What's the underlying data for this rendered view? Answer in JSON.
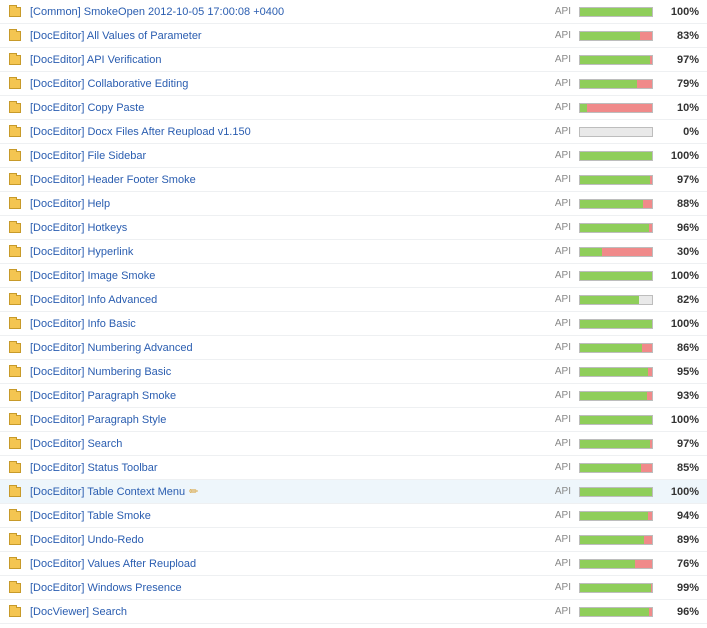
{
  "api_label": "API",
  "colors": {
    "link": "#2a5db0",
    "bar_green": "#8fce5a",
    "bar_red": "#f08a8a",
    "bar_empty": "#e9e9e9",
    "bar_border": "#bdbdbd",
    "highlight_bg": "#eef6fb",
    "folder_fill": "#f4c551",
    "folder_border": "#c79a2a"
  },
  "rows": [
    {
      "name": "[Common] SmokeOpen 2012-10-05 17:00:08 +0400",
      "pct": 100,
      "green": 100,
      "edit": false,
      "highlight": false
    },
    {
      "name": "[DocEditor] All Values of Parameter",
      "pct": 83,
      "green": 83,
      "edit": false,
      "highlight": false
    },
    {
      "name": "[DocEditor] API Verification",
      "pct": 97,
      "green": 97,
      "edit": false,
      "highlight": false
    },
    {
      "name": "[DocEditor] Collaborative Editing",
      "pct": 79,
      "green": 79,
      "edit": false,
      "highlight": false
    },
    {
      "name": "[DocEditor] Copy Paste",
      "pct": 10,
      "green": 10,
      "edit": false,
      "highlight": false
    },
    {
      "name": "[DocEditor] Docx Files After Reupload v1.150",
      "pct": 0,
      "green": 0,
      "edit": false,
      "highlight": false
    },
    {
      "name": "[DocEditor] File Sidebar",
      "pct": 100,
      "green": 100,
      "edit": false,
      "highlight": false
    },
    {
      "name": "[DocEditor] Header Footer Smoke",
      "pct": 97,
      "green": 97,
      "edit": false,
      "highlight": false
    },
    {
      "name": "[DocEditor] Help",
      "pct": 88,
      "green": 88,
      "edit": false,
      "highlight": false
    },
    {
      "name": "[DocEditor] Hotkeys",
      "pct": 96,
      "green": 96,
      "edit": false,
      "highlight": false
    },
    {
      "name": "[DocEditor] Hyperlink",
      "pct": 30,
      "green": 30,
      "edit": false,
      "highlight": false
    },
    {
      "name": "[DocEditor] Image Smoke",
      "pct": 100,
      "green": 100,
      "edit": false,
      "highlight": false
    },
    {
      "name": "[DocEditor] Info Advanced",
      "pct": 82,
      "green": 82,
      "red": 0,
      "edit": false,
      "highlight": false
    },
    {
      "name": "[DocEditor] Info Basic",
      "pct": 100,
      "green": 100,
      "edit": false,
      "highlight": false
    },
    {
      "name": "[DocEditor] Numbering Advanced",
      "pct": 86,
      "green": 86,
      "edit": false,
      "highlight": false
    },
    {
      "name": "[DocEditor] Numbering Basic",
      "pct": 95,
      "green": 95,
      "edit": false,
      "highlight": false
    },
    {
      "name": "[DocEditor] Paragraph Smoke",
      "pct": 93,
      "green": 93,
      "edit": false,
      "highlight": false
    },
    {
      "name": "[DocEditor] Paragraph Style",
      "pct": 100,
      "green": 100,
      "edit": false,
      "highlight": false
    },
    {
      "name": "[DocEditor] Search",
      "pct": 97,
      "green": 97,
      "edit": false,
      "highlight": false
    },
    {
      "name": "[DocEditor] Status Toolbar",
      "pct": 85,
      "green": 85,
      "edit": false,
      "highlight": false
    },
    {
      "name": "[DocEditor] Table Context Menu",
      "pct": 100,
      "green": 100,
      "edit": true,
      "highlight": true
    },
    {
      "name": "[DocEditor] Table Smoke",
      "pct": 94,
      "green": 94,
      "edit": false,
      "highlight": false
    },
    {
      "name": "[DocEditor] Undo-Redo",
      "pct": 89,
      "green": 89,
      "edit": false,
      "highlight": false
    },
    {
      "name": "[DocEditor] Values After Reupload",
      "pct": 76,
      "green": 76,
      "edit": false,
      "highlight": false
    },
    {
      "name": "[DocEditor] Windows Presence",
      "pct": 99,
      "green": 99,
      "edit": false,
      "highlight": false
    },
    {
      "name": "[DocViewer] Search",
      "pct": 96,
      "green": 96,
      "edit": false,
      "highlight": false
    }
  ]
}
